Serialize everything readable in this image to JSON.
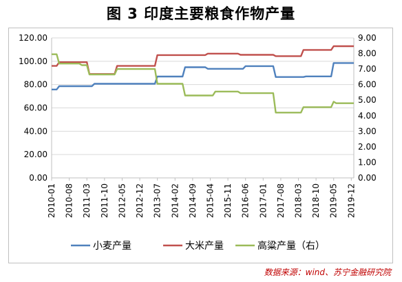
{
  "figure": {
    "title": "图 3  印度主要粮食作物产量",
    "source": "数据来源：wind、苏宁金融研究院"
  },
  "chart_data": {
    "type": "line",
    "left_axis": {
      "min": 0,
      "max": 120,
      "ticks": [
        "0.00",
        "20.00",
        "40.00",
        "60.00",
        "80.00",
        "100.00",
        "120.00"
      ]
    },
    "right_axis": {
      "min": 0,
      "max": 9,
      "ticks": [
        "0.00",
        "1.00",
        "2.00",
        "3.00",
        "4.00",
        "5.00",
        "6.00",
        "7.00",
        "8.00",
        "9.00"
      ]
    },
    "x_ticks": [
      "2010-01",
      "2010-08",
      "2011-03",
      "2011-10",
      "2012-05",
      "2012-12",
      "2013-07",
      "2014-02",
      "2014-09",
      "2015-04",
      "2015-11",
      "2016-06",
      "2017-01",
      "2017-08",
      "2018-03",
      "2018-10",
      "2019-05",
      "2019-12"
    ],
    "grid": true,
    "legend_position": "bottom",
    "series": [
      {
        "name": "小麦产量",
        "axis": "left",
        "color": "#4f81bd",
        "points": [
          [
            "2010-01",
            75.8
          ],
          [
            "2010-03",
            75.8
          ],
          [
            "2010-04",
            78.6
          ],
          [
            "2011-05",
            78.6
          ],
          [
            "2011-06",
            80.7
          ],
          [
            "2013-06",
            80.7
          ],
          [
            "2013-07",
            86.9
          ],
          [
            "2014-05",
            86.9
          ],
          [
            "2014-06",
            94.9
          ],
          [
            "2015-02",
            94.9
          ],
          [
            "2015-03",
            93.5
          ],
          [
            "2016-05",
            93.5
          ],
          [
            "2016-06",
            95.8
          ],
          [
            "2017-05",
            95.8
          ],
          [
            "2017-06",
            86.5
          ],
          [
            "2018-05",
            86.5
          ],
          [
            "2018-06",
            87.0
          ],
          [
            "2019-04",
            87.0
          ],
          [
            "2019-05",
            98.5
          ],
          [
            "2020-01",
            98.5
          ]
        ]
      },
      {
        "name": "大米产量",
        "axis": "left",
        "color": "#c0504d",
        "points": [
          [
            "2010-01",
            96.0
          ],
          [
            "2010-03",
            96.0
          ],
          [
            "2010-04",
            99.2
          ],
          [
            "2011-03",
            99.2
          ],
          [
            "2011-04",
            89.1
          ],
          [
            "2012-02",
            89.1
          ],
          [
            "2012-03",
            96.0
          ],
          [
            "2013-06",
            96.0
          ],
          [
            "2013-07",
            105.3
          ],
          [
            "2015-02",
            105.3
          ],
          [
            "2015-03",
            106.5
          ],
          [
            "2016-03",
            106.5
          ],
          [
            "2016-04",
            105.5
          ],
          [
            "2017-05",
            105.5
          ],
          [
            "2017-06",
            104.4
          ],
          [
            "2018-04",
            104.4
          ],
          [
            "2018-05",
            109.7
          ],
          [
            "2019-04",
            109.7
          ],
          [
            "2019-05",
            112.9
          ],
          [
            "2020-01",
            112.9
          ]
        ]
      },
      {
        "name": "高粱产量（右）",
        "axis": "right",
        "color": "#9bbb59",
        "points": [
          [
            "2010-01",
            7.95
          ],
          [
            "2010-03",
            7.95
          ],
          [
            "2010-04",
            7.35
          ],
          [
            "2010-12",
            7.35
          ],
          [
            "2011-01",
            7.25
          ],
          [
            "2011-03",
            7.25
          ],
          [
            "2011-04",
            6.65
          ],
          [
            "2012-02",
            6.65
          ],
          [
            "2012-03",
            7.0
          ],
          [
            "2013-06",
            7.0
          ],
          [
            "2013-07",
            6.05
          ],
          [
            "2014-05",
            6.05
          ],
          [
            "2014-06",
            5.3
          ],
          [
            "2015-05",
            5.3
          ],
          [
            "2015-06",
            5.55
          ],
          [
            "2016-03",
            5.55
          ],
          [
            "2016-04",
            5.45
          ],
          [
            "2017-05",
            5.45
          ],
          [
            "2017-06",
            4.2
          ],
          [
            "2018-04",
            4.2
          ],
          [
            "2018-05",
            4.55
          ],
          [
            "2019-04",
            4.55
          ],
          [
            "2019-05",
            4.9
          ],
          [
            "2019-06",
            4.8
          ],
          [
            "2020-01",
            4.8
          ]
        ]
      }
    ]
  }
}
